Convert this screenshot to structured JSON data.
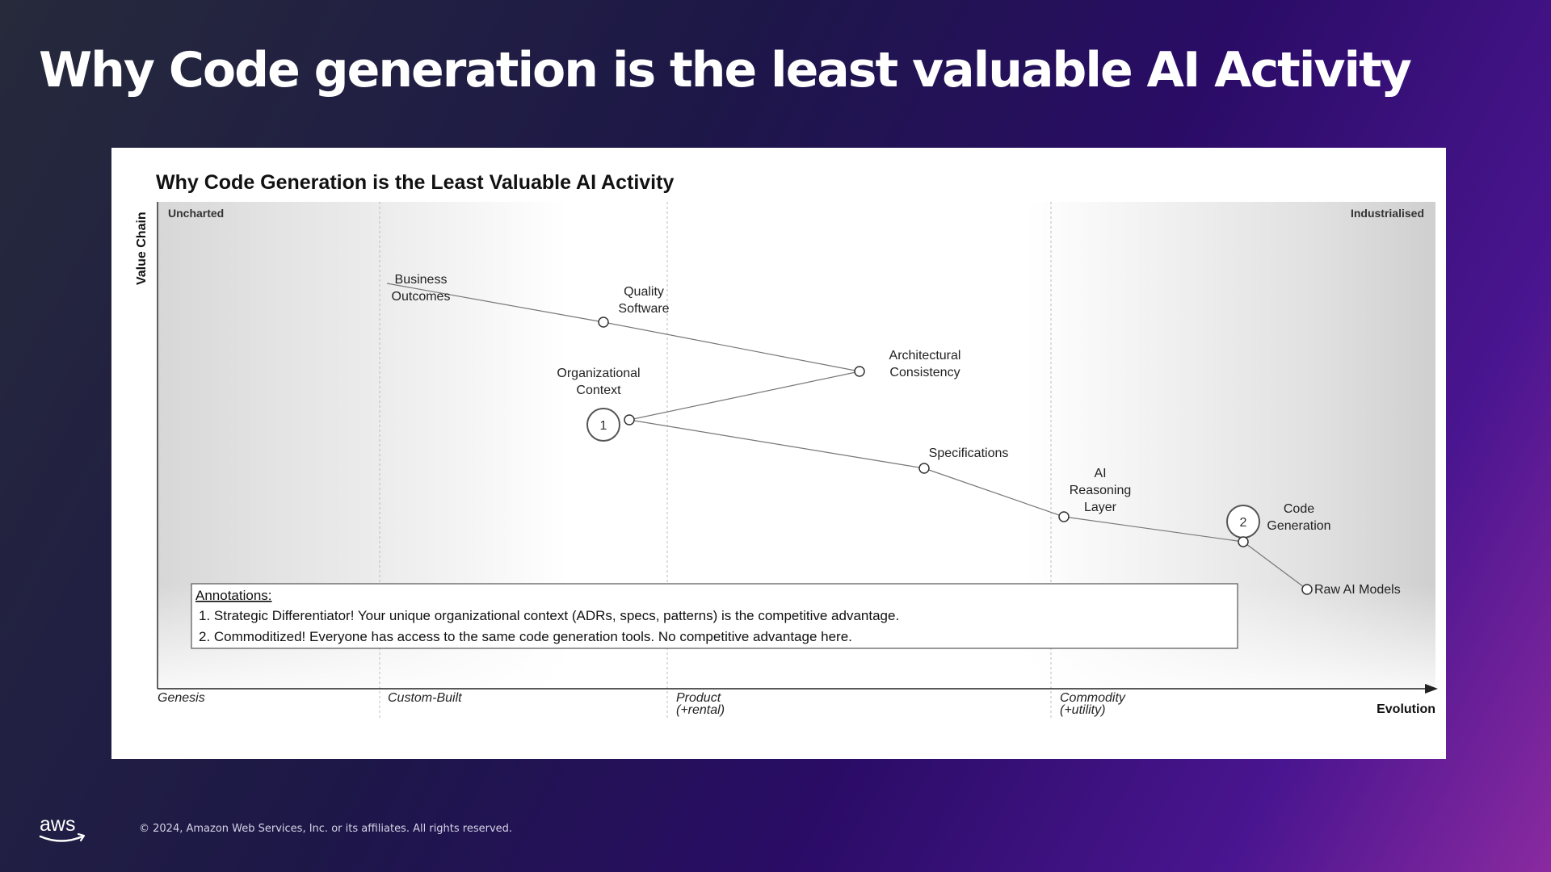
{
  "slide": {
    "title": "Why Code generation is the least valuable AI Activity",
    "footer": {
      "logo": "aws",
      "copyright": "© 2024, Amazon Web Services, Inc. or its affiliates. All rights reserved."
    }
  },
  "map": {
    "title": "Why Code Generation is the Least Valuable AI Activity",
    "y_axis_label": "Value Chain",
    "x_axis_label": "Evolution",
    "corner_left": "Uncharted",
    "corner_right": "Industrialised",
    "stages": [
      {
        "lines": [
          "Genesis"
        ]
      },
      {
        "lines": [
          "Custom-Built"
        ]
      },
      {
        "lines": [
          "Product",
          "(+rental)"
        ]
      },
      {
        "lines": [
          "Commodity",
          "(+utility)"
        ]
      }
    ],
    "components": [
      {
        "id": "business-outcomes",
        "lines": [
          "Business",
          "Outcomes"
        ]
      },
      {
        "id": "quality-software",
        "lines": [
          "Quality",
          "Software"
        ]
      },
      {
        "id": "architectural-consistency",
        "lines": [
          "Architectural",
          "Consistency"
        ]
      },
      {
        "id": "organizational-context",
        "lines": [
          "Organizational",
          "Context"
        ]
      },
      {
        "id": "specifications",
        "lines": [
          "Specifications"
        ]
      },
      {
        "id": "ai-reasoning-layer",
        "lines": [
          "AI",
          "Reasoning",
          "Layer"
        ]
      },
      {
        "id": "code-generation",
        "lines": [
          "Code",
          "Generation"
        ]
      },
      {
        "id": "raw-ai-models",
        "lines": [
          "Raw AI Models"
        ]
      }
    ],
    "markers": [
      {
        "label": "1",
        "target": "organizational-context"
      },
      {
        "label": "2",
        "target": "code-generation"
      }
    ],
    "annotations": {
      "heading": "Annotations:",
      "items": [
        "1. Strategic Differentiator! Your unique organizational context (ADRs, specs, patterns) is the competitive advantage.",
        "2. Commoditized! Everyone has access to the same code generation tools. No competitive advantage here."
      ]
    },
    "colors": {
      "component_fill": "#ffffff",
      "stroke": "#333333",
      "text": "#222222"
    }
  }
}
